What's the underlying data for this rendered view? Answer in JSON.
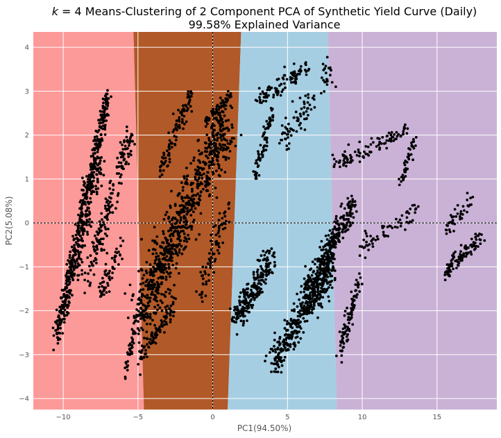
{
  "chart_data": {
    "type": "scatter",
    "title_k": "k",
    "title_rest": " = 4 Means-Clustering of 2 Component PCA of Synthetic Yield Curve (Daily)",
    "subtitle": "99.58% Explained Variance",
    "xlabel": "PC1(94.50%)",
    "ylabel": "PC2(5.08%)",
    "xlim": [
      -12.0,
      19.0
    ],
    "ylim": [
      -4.25,
      4.35
    ],
    "xticks": [
      -10,
      -5,
      0,
      5,
      10,
      15
    ],
    "yticks": [
      -4,
      -3,
      -2,
      -1,
      0,
      1,
      2,
      3,
      4
    ],
    "grid": true,
    "reference_lines": {
      "x": 0,
      "y": 0
    },
    "background": "#ebebeb",
    "point_color": "#000000",
    "regions": [
      {
        "cluster": 1,
        "color": "#fb9a99",
        "boundary_x_at_top": -5.3,
        "boundary_x_at_bottom": -4.6
      },
      {
        "cluster": 2,
        "color": "#b15928",
        "boundary_x_at_top": 1.9,
        "boundary_x_at_bottom": 1.0
      },
      {
        "cluster": 3,
        "color": "#a6cee3",
        "boundary_x_at_top": 7.7,
        "boundary_x_at_bottom": 8.3
      },
      {
        "cluster": 4,
        "color": "#cab2d6"
      }
    ],
    "point_groups": [
      {
        "x": [
          -10.5,
          -7.0
        ],
        "y": [
          -2.6,
          2.9
        ],
        "n": 420,
        "spread": 0.25
      },
      {
        "x": [
          -10.0,
          -7.5
        ],
        "y": [
          -2.2,
          1.5
        ],
        "n": 160,
        "spread": 0.3
      },
      {
        "x": [
          -8.5,
          -5.5
        ],
        "y": [
          -1.4,
          2.0
        ],
        "n": 170,
        "spread": 0.35
      },
      {
        "x": [
          -7.5,
          -6.0
        ],
        "y": [
          -1.6,
          -0.4
        ],
        "n": 60,
        "spread": 0.3
      },
      {
        "x": [
          -6.0,
          -5.2
        ],
        "y": [
          -3.6,
          -2.4
        ],
        "n": 40,
        "spread": 0.15
      },
      {
        "x": [
          -4.8,
          -2.5
        ],
        "y": [
          -3.1,
          -1.8
        ],
        "n": 90,
        "spread": 0.2
      },
      {
        "x": [
          -3.5,
          -1.5
        ],
        "y": [
          1.2,
          2.9
        ],
        "n": 100,
        "spread": 0.25
      },
      {
        "x": [
          -0.5,
          1.2
        ],
        "y": [
          2.3,
          2.9
        ],
        "n": 60,
        "spread": 0.1
      },
      {
        "x": [
          -5.0,
          1.0
        ],
        "y": [
          -2.2,
          2.4
        ],
        "n": 800,
        "spread": 0.7
      },
      {
        "x": [
          -1.0,
          1.0
        ],
        "y": [
          -1.8,
          0.4
        ],
        "n": 80,
        "spread": 0.3
      },
      {
        "x": [
          1.5,
          4.0
        ],
        "y": [
          -2.2,
          -0.8
        ],
        "n": 220,
        "spread": 0.35
      },
      {
        "x": [
          2.8,
          4.0
        ],
        "y": [
          1.0,
          2.6
        ],
        "n": 70,
        "spread": 0.2
      },
      {
        "x": [
          3.0,
          6.5
        ],
        "y": [
          2.8,
          3.6
        ],
        "n": 90,
        "spread": 0.2
      },
      {
        "x": [
          4.5,
          8.0
        ],
        "y": [
          1.8,
          3.5
        ],
        "n": 90,
        "spread": 0.3
      },
      {
        "x": [
          4.0,
          8.0
        ],
        "y": [
          -3.2,
          -1.0
        ],
        "n": 380,
        "spread": 0.4
      },
      {
        "x": [
          6.0,
          9.5
        ],
        "y": [
          -1.8,
          0.5
        ],
        "n": 320,
        "spread": 0.35
      },
      {
        "x": [
          8.5,
          10.0
        ],
        "y": [
          -3.0,
          -1.0
        ],
        "n": 90,
        "spread": 0.25
      },
      {
        "x": [
          8.0,
          13.0
        ],
        "y": [
          1.3,
          2.1
        ],
        "n": 100,
        "spread": 0.2
      },
      {
        "x": [
          12.5,
          13.5
        ],
        "y": [
          0.8,
          1.9
        ],
        "n": 40,
        "spread": 0.2
      },
      {
        "x": [
          10.0,
          14.0
        ],
        "y": [
          -0.5,
          0.3
        ],
        "n": 60,
        "spread": 0.25
      },
      {
        "x": [
          15.5,
          17.5
        ],
        "y": [
          -0.2,
          0.6
        ],
        "n": 40,
        "spread": 0.2
      },
      {
        "x": [
          15.5,
          18.0
        ],
        "y": [
          -1.2,
          -0.3
        ],
        "n": 80,
        "spread": 0.2
      },
      {
        "x": [
          15.5,
          16.3
        ],
        "y": [
          -1.3,
          -0.6
        ],
        "n": 20,
        "spread": 0.1
      }
    ]
  }
}
